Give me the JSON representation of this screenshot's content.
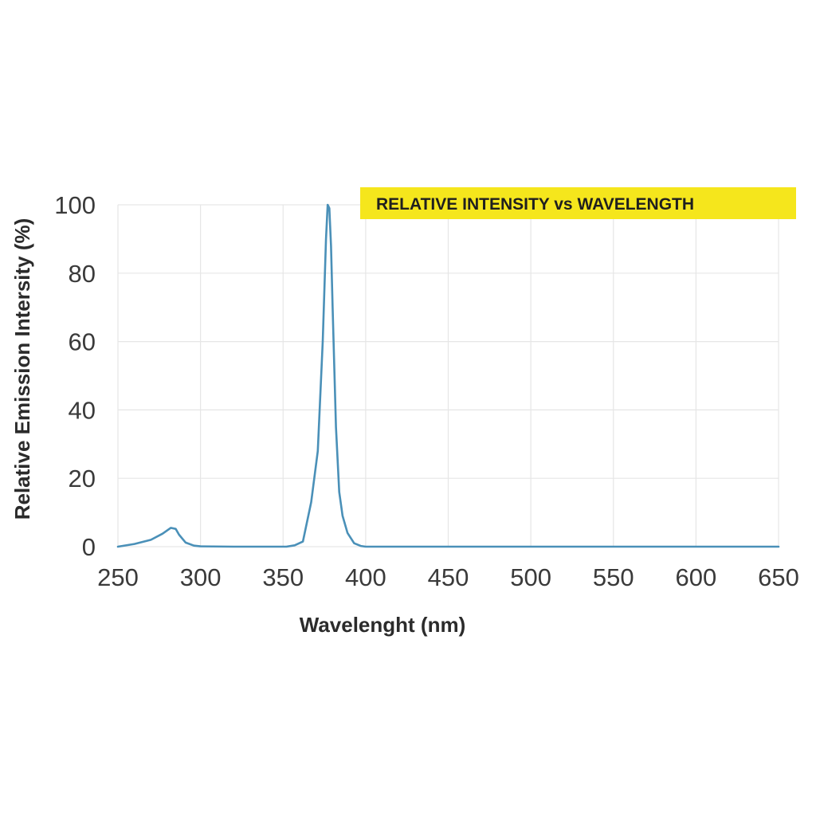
{
  "chart_data": {
    "type": "line",
    "title": "RELATIVE INTENSITY vs WAVELENGTH",
    "xlabel": "Wavelenght (nm)",
    "ylabel": "Relative Emission Intersity (%)",
    "xlim": [
      250,
      650
    ],
    "ylim": [
      0,
      100
    ],
    "x_ticks": [
      250,
      300,
      350,
      400,
      450,
      500,
      550,
      600,
      650
    ],
    "y_ticks": [
      0,
      20,
      40,
      60,
      80,
      100
    ],
    "grid": true,
    "title_highlight_color": "#F5E61C",
    "series": [
      {
        "color": "#4A90B8",
        "x": [
          250,
          260,
          270,
          277,
          282,
          285,
          287,
          291,
          296,
          300,
          320,
          340,
          352,
          357,
          362,
          367,
          371,
          374,
          376,
          377,
          378,
          379,
          380,
          382,
          384,
          386,
          389,
          393,
          397,
          400,
          450,
          500,
          550,
          600,
          650
        ],
        "y": [
          0,
          0.8,
          2,
          3.8,
          5.5,
          5.2,
          3.5,
          1.2,
          0.3,
          0.1,
          0,
          0,
          0,
          0.4,
          1.5,
          13,
          28,
          60,
          90,
          100,
          99,
          88,
          70,
          35,
          16,
          9,
          4,
          1,
          0.2,
          0,
          0,
          0,
          0,
          0,
          0
        ]
      }
    ]
  }
}
